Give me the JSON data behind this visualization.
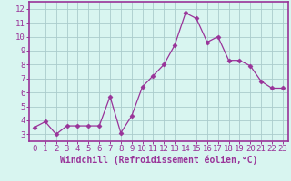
{
  "x": [
    0,
    1,
    2,
    3,
    4,
    5,
    6,
    7,
    8,
    9,
    10,
    11,
    12,
    13,
    14,
    15,
    16,
    17,
    18,
    19,
    20,
    21,
    22,
    23
  ],
  "y": [
    3.5,
    3.9,
    3.0,
    3.6,
    3.6,
    3.6,
    3.6,
    5.7,
    3.1,
    4.3,
    6.4,
    7.2,
    8.0,
    9.4,
    11.7,
    11.3,
    9.6,
    10.0,
    8.3,
    8.3,
    7.9,
    6.8,
    6.3,
    6.3
  ],
  "line_color": "#993399",
  "marker": "D",
  "marker_size": 2.5,
  "bg_color": "#d8f5f0",
  "plot_bg_color": "#d8f5f0",
  "grid_color": "#aacccc",
  "xlabel": "Windchill (Refroidissement éolien,°C)",
  "xlabel_fontsize": 7,
  "ylabel_ticks": [
    3,
    4,
    5,
    6,
    7,
    8,
    9,
    10,
    11,
    12
  ],
  "xlim": [
    -0.5,
    23.5
  ],
  "ylim": [
    2.5,
    12.5
  ],
  "tick_color": "#993399",
  "tick_fontsize": 6.5,
  "spine_color": "#993399",
  "bottom_bar_color": "#993399",
  "linewidth": 0.9
}
